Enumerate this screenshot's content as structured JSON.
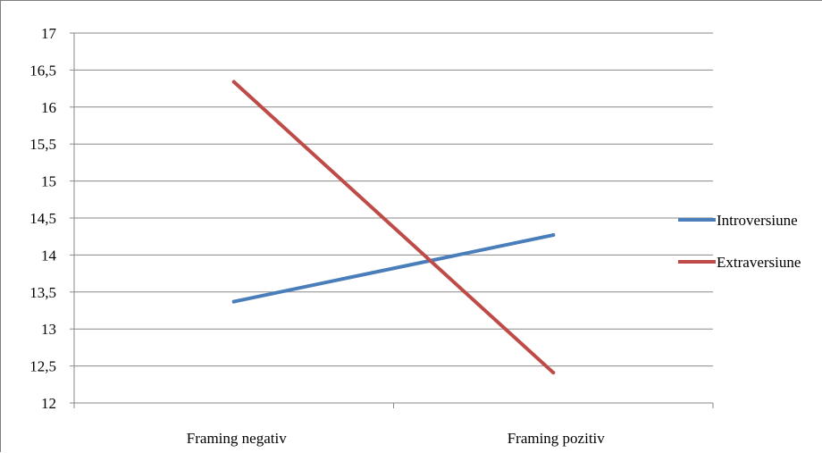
{
  "chart_data": {
    "type": "line",
    "categories": [
      "Framing negativ",
      "Framing pozitiv"
    ],
    "series": [
      {
        "name": "Introversiune",
        "color": "#4a7ebb",
        "values": [
          13.37,
          14.27
        ]
      },
      {
        "name": "Extraversiune",
        "color": "#be4b48",
        "values": [
          16.34,
          12.41
        ]
      }
    ],
    "ylim": [
      12,
      17
    ],
    "yticks": [
      "12",
      "12,5",
      "13",
      "13,5",
      "14",
      "14,5",
      "15",
      "15,5",
      "16",
      "16,5",
      "17"
    ],
    "grid": true,
    "legend_position": "right",
    "title": "",
    "xlabel": "",
    "ylabel": ""
  }
}
